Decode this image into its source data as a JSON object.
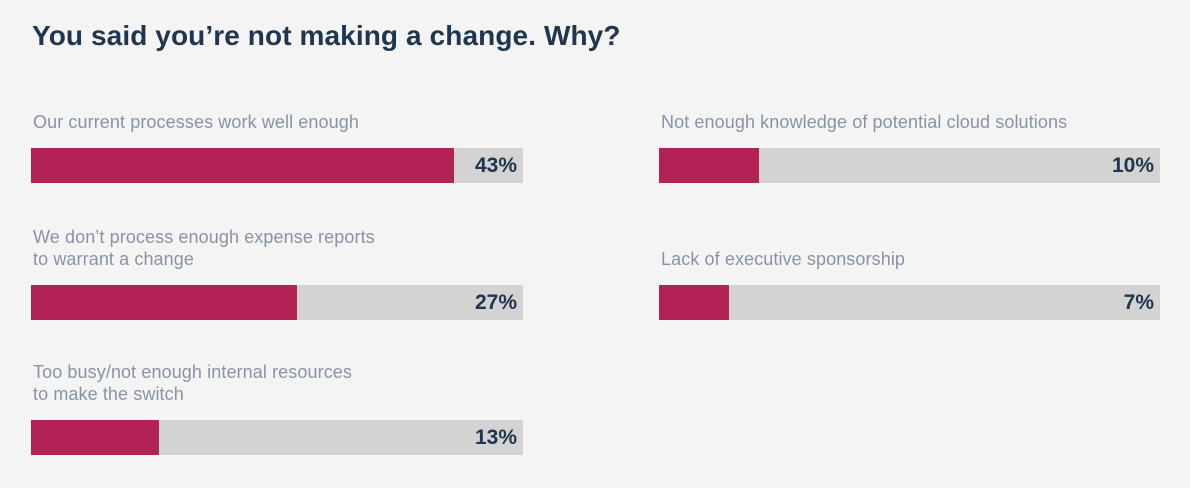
{
  "colors": {
    "background": "#F4F4F4",
    "title_text": "#20354F",
    "label_text": "#8893A4",
    "percent_text": "#20354F",
    "bar_fill": "#B22257",
    "bar_track": "#D2D3D2"
  },
  "header": {
    "title": "You said you’re not making a change. Why?"
  },
  "chart_data": {
    "type": "bar",
    "orientation": "horizontal",
    "title": "You said you’re not making a change. Why?",
    "unit": "%",
    "axis_max_percent": 50,
    "grid": false,
    "legend": "none",
    "columns": [
      {
        "items": [
          {
            "label": "Our current processes work well enough",
            "lines": [
              "Our current processes work well enough"
            ],
            "value": 43,
            "percent_label": "43%"
          },
          {
            "label": "We don’t process enough expense reports to warrant a change",
            "lines": [
              "We don’t process enough expense reports",
              "to warrant a change"
            ],
            "value": 27,
            "percent_label": "27%"
          },
          {
            "label": "Too busy/not enough internal resources to make the switch",
            "lines": [
              "Too busy/not enough internal resources",
              "to make the switch"
            ],
            "value": 13,
            "percent_label": "13%"
          }
        ]
      },
      {
        "items": [
          {
            "label": "Not enough knowledge of potential cloud solutions",
            "lines": [
              "Not enough knowledge of potential cloud solutions"
            ],
            "value": 10,
            "percent_label": "10%"
          },
          {
            "label": "Lack of executive sponsorship",
            "lines": [
              "Lack of executive sponsorship"
            ],
            "value": 7,
            "percent_label": "7%"
          }
        ]
      }
    ]
  }
}
